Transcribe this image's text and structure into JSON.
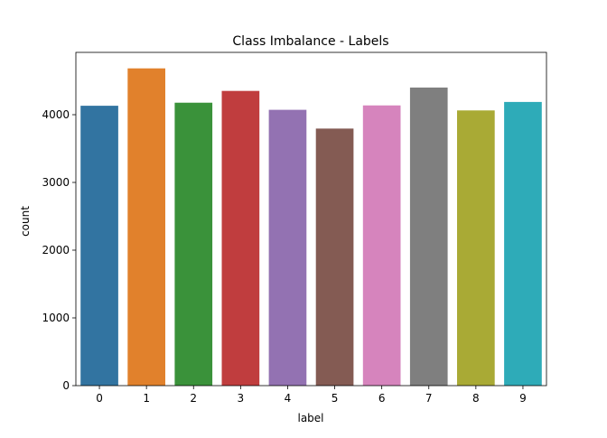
{
  "chart_data": {
    "type": "bar",
    "title": "Class Imbalance - Labels",
    "xlabel": "label",
    "ylabel": "count",
    "categories": [
      "0",
      "1",
      "2",
      "3",
      "4",
      "5",
      "6",
      "7",
      "8",
      "9"
    ],
    "values": [
      4132,
      4684,
      4177,
      4351,
      4072,
      3795,
      4137,
      4401,
      4063,
      4188
    ],
    "ylim": [
      0,
      4920
    ],
    "yticks": [
      0,
      1000,
      2000,
      3000,
      4000
    ],
    "colors": [
      "#3274a1",
      "#e1812c",
      "#3a923a",
      "#c03d3e",
      "#9372b2",
      "#845b53",
      "#d684bd",
      "#7f7f7f",
      "#a9aa35",
      "#2eabb8"
    ],
    "grid": false,
    "legend": "none"
  }
}
